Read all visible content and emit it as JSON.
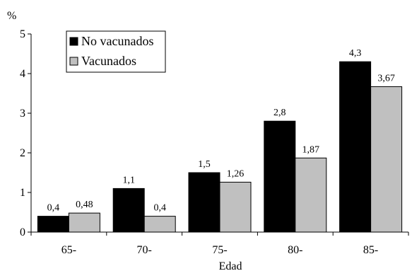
{
  "chart_data": {
    "type": "bar",
    "ylabel": "%",
    "xlabel": "Edad",
    "ylim": [
      0,
      5
    ],
    "yticks": [
      "0",
      "1",
      "2",
      "3",
      "4",
      "5"
    ],
    "categories": [
      "65-",
      "70-",
      "75-",
      "80-",
      "85-"
    ],
    "series": [
      {
        "name": "No vacunados",
        "color": "#000000",
        "values": [
          0.4,
          1.1,
          1.5,
          2.8,
          4.3
        ],
        "labels": [
          "0,4",
          "1,1",
          "1,5",
          "2,8",
          "4,3"
        ]
      },
      {
        "name": "Vacunados",
        "color": "#c0c0c0",
        "values": [
          0.48,
          0.4,
          1.26,
          1.87,
          3.67
        ],
        "labels": [
          "0,48",
          "0,4",
          "1,26",
          "1,87",
          "3,67"
        ]
      }
    ],
    "grid": false,
    "legend_position": "top-left"
  }
}
